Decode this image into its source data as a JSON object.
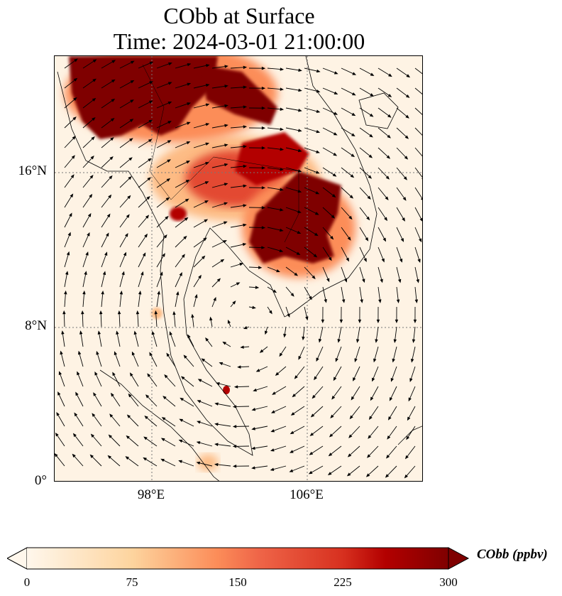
{
  "title": {
    "line1": "CObb at Surface",
    "line2": "Time: 2024-03-01 21:00:00"
  },
  "map": {
    "extent_lon": [
      93,
      112
    ],
    "extent_lat": [
      0,
      22
    ],
    "lat_ticks": [
      {
        "value": 16,
        "label": "16°N"
      },
      {
        "value": 8,
        "label": "8°N"
      },
      {
        "value": 0,
        "label": "0°"
      }
    ],
    "lon_ticks": [
      {
        "value": 98,
        "label": "98°E"
      },
      {
        "value": 106,
        "label": "106°E"
      }
    ],
    "gridlines": "dotted",
    "overlay": "wind-vectors"
  },
  "colorbar": {
    "label": "CObb (ppbv)",
    "min": 0,
    "max": 300,
    "ticks": [
      "0",
      "75",
      "150",
      "225",
      "300"
    ],
    "extend": "both",
    "colormap": [
      "#fff7ec",
      "#fdd49e",
      "#fc8d59",
      "#d7301f",
      "#b30000",
      "#7f0000"
    ]
  }
}
